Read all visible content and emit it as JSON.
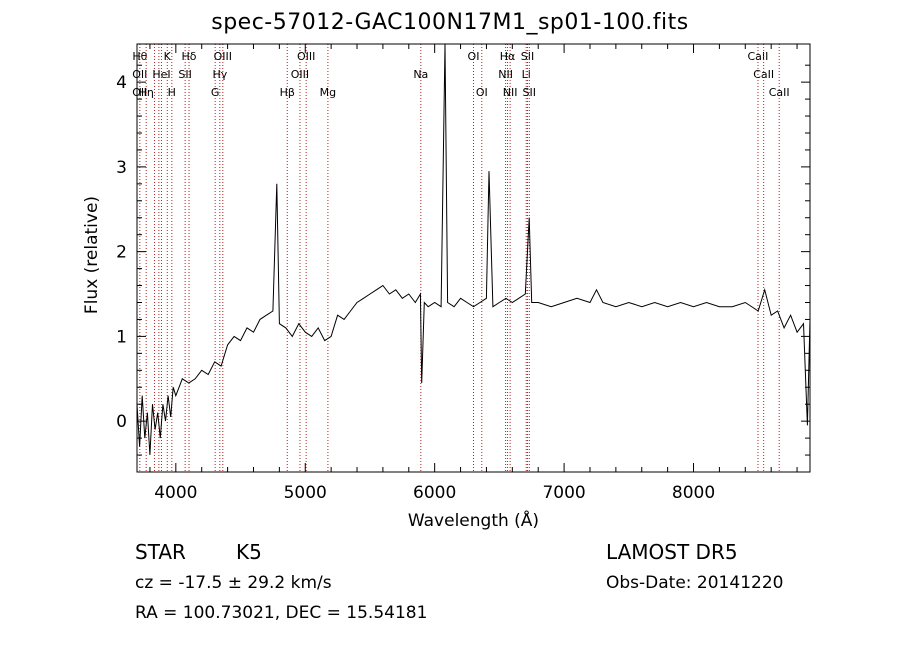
{
  "chart_data": {
    "type": "line",
    "title": "spec-57012-GAC100N17M1_sp01-100.fits",
    "xlabel": "Wavelength (Å)",
    "ylabel": "Flux (relative)",
    "xlim": [
      3700,
      8900
    ],
    "ylim": [
      -0.6,
      4.45
    ],
    "xticks": [
      4000,
      5000,
      6000,
      7000,
      8000
    ],
    "yticks": [
      0,
      1,
      2,
      3,
      4
    ],
    "grid": false,
    "series": [
      {
        "x": [
          3700,
          3720,
          3740,
          3760,
          3780,
          3800,
          3820,
          3840,
          3860,
          3880,
          3900,
          3920,
          3940,
          3960,
          3980,
          4000,
          4050,
          4100,
          4150,
          4200,
          4250,
          4300,
          4350,
          4400,
          4450,
          4500,
          4550,
          4600,
          4650,
          4700,
          4750,
          4780,
          4800,
          4850,
          4900,
          4950,
          5000,
          5050,
          5100,
          5150,
          5200,
          5250,
          5300,
          5350,
          5400,
          5450,
          5500,
          5550,
          5600,
          5650,
          5700,
          5750,
          5800,
          5850,
          5890,
          5900,
          5920,
          5950,
          6000,
          6050,
          6080,
          6100,
          6150,
          6200,
          6250,
          6300,
          6350,
          6400,
          6420,
          6450,
          6500,
          6550,
          6600,
          6650,
          6700,
          6730,
          6750,
          6800,
          6900,
          7000,
          7100,
          7200,
          7250,
          7300,
          7400,
          7500,
          7600,
          7700,
          7800,
          7900,
          8000,
          8100,
          8200,
          8300,
          8400,
          8500,
          8550,
          8600,
          8650,
          8700,
          8750,
          8800,
          8850,
          8880,
          8900
        ],
        "y": [
          0.2,
          -0.3,
          0.3,
          -0.2,
          0.1,
          -0.4,
          0.2,
          -0.1,
          0.1,
          -0.2,
          0.2,
          0.0,
          0.3,
          0.05,
          0.4,
          0.3,
          0.5,
          0.45,
          0.5,
          0.6,
          0.55,
          0.7,
          0.65,
          0.9,
          1.0,
          0.95,
          1.1,
          1.05,
          1.2,
          1.25,
          1.3,
          2.8,
          1.15,
          1.1,
          1.0,
          1.15,
          1.05,
          1.0,
          1.1,
          0.95,
          1.0,
          1.25,
          1.2,
          1.3,
          1.4,
          1.45,
          1.5,
          1.55,
          1.6,
          1.5,
          1.55,
          1.45,
          1.5,
          1.4,
          1.5,
          0.45,
          1.4,
          1.35,
          1.4,
          1.35,
          4.5,
          1.4,
          1.35,
          1.45,
          1.4,
          1.35,
          1.4,
          1.45,
          2.95,
          1.35,
          1.4,
          1.45,
          1.4,
          1.45,
          1.5,
          2.4,
          1.4,
          1.4,
          1.35,
          1.4,
          1.45,
          1.4,
          1.55,
          1.4,
          1.35,
          1.4,
          1.35,
          1.4,
          1.35,
          1.4,
          1.35,
          1.4,
          1.35,
          1.35,
          1.4,
          1.3,
          1.55,
          1.25,
          1.3,
          1.1,
          1.25,
          1.05,
          1.15,
          -0.05,
          1.2
        ]
      }
    ],
    "line_color": "#000000",
    "marker_color": "#b22222",
    "markers": [
      {
        "x": 3722,
        "top": "Hθ",
        "mid": "OII",
        "low": "OII"
      },
      {
        "x": 3771,
        "top": "",
        "mid": "",
        "low": "Hη"
      },
      {
        "x": 3835,
        "top": "",
        "mid": "",
        "low": ""
      },
      {
        "x": 3869,
        "top": "",
        "mid": "",
        "low": ""
      },
      {
        "x": 3889,
        "top": "",
        "mid": "HeI",
        "low": ""
      },
      {
        "x": 3934,
        "top": "K",
        "mid": "",
        "low": ""
      },
      {
        "x": 3969,
        "top": "",
        "mid": "",
        "low": "H"
      },
      {
        "x": 4072,
        "top": "",
        "mid": "SII",
        "low": ""
      },
      {
        "x": 4102,
        "top": "Hδ",
        "mid": "",
        "low": ""
      },
      {
        "x": 4304,
        "top": "",
        "mid": "",
        "low": "G"
      },
      {
        "x": 4340,
        "top": "",
        "mid": "Hγ",
        "low": ""
      },
      {
        "x": 4363,
        "top": "OIII",
        "mid": "",
        "low": ""
      },
      {
        "x": 4861,
        "top": "",
        "mid": "",
        "low": "Hβ"
      },
      {
        "x": 4959,
        "top": "",
        "mid": "OIII",
        "low": ""
      },
      {
        "x": 5007,
        "top": "OIII",
        "mid": "",
        "low": ""
      },
      {
        "x": 5175,
        "top": "",
        "mid": "",
        "low": "Mg"
      },
      {
        "x": 5893,
        "top": "",
        "mid": "Na",
        "low": ""
      },
      {
        "x": 6300,
        "top": "OI",
        "mid": "",
        "low": ""
      },
      {
        "x": 6364,
        "top": "",
        "mid": "",
        "low": "OI"
      },
      {
        "x": 6548,
        "top": "",
        "mid": "NII",
        "low": ""
      },
      {
        "x": 6563,
        "top": "Hα",
        "mid": "",
        "low": ""
      },
      {
        "x": 6583,
        "top": "",
        "mid": "",
        "low": "NII"
      },
      {
        "x": 6707,
        "top": "",
        "mid": "Li",
        "low": ""
      },
      {
        "x": 6717,
        "top": "SII",
        "mid": "",
        "low": ""
      },
      {
        "x": 6731,
        "top": "",
        "mid": "",
        "low": "SII"
      },
      {
        "x": 8498,
        "top": "CaII",
        "mid": "",
        "low": ""
      },
      {
        "x": 8542,
        "top": "",
        "mid": "CaII",
        "low": ""
      },
      {
        "x": 8662,
        "top": "",
        "mid": "",
        "low": "CaII"
      }
    ]
  },
  "info": {
    "obj_class": "STAR",
    "obj_subclass": "K5",
    "survey": "LAMOST DR5",
    "cz": "cz = -17.5 ± 29.2 km/s",
    "obs_date": "Obs-Date: 20141220",
    "coords": "RA = 100.73021, DEC =  15.54181"
  }
}
